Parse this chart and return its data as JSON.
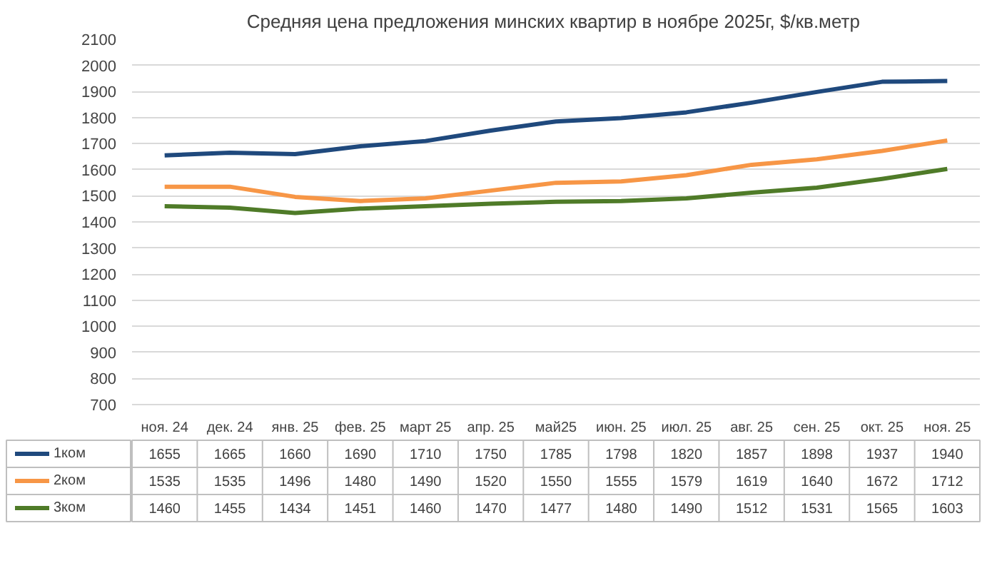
{
  "chart_data": {
    "type": "line",
    "title": "Средняя цена предложения  минских квартир в ноябре 2025г, $/кв.метр",
    "categories": [
      "ноя. 24",
      "дек. 24",
      "янв. 25",
      "фев. 25",
      "март 25",
      "апр. 25",
      "май25",
      "июн. 25",
      "июл. 25",
      "авг. 25",
      "сен. 25",
      "окт. 25",
      "ноя. 25"
    ],
    "series": [
      {
        "name": "1ком",
        "color": "#1f497d",
        "values": [
          1655,
          1665,
          1660,
          1690,
          1710,
          1750,
          1785,
          1798,
          1820,
          1857,
          1898,
          1937,
          1940
        ]
      },
      {
        "name": "2ком",
        "color": "#f79646",
        "values": [
          1535,
          1535,
          1496,
          1480,
          1490,
          1520,
          1550,
          1555,
          1579,
          1619,
          1640,
          1672,
          1712
        ]
      },
      {
        "name": "3ком",
        "color": "#4f7b28",
        "values": [
          1460,
          1455,
          1434,
          1451,
          1460,
          1470,
          1477,
          1480,
          1490,
          1512,
          1531,
          1565,
          1603
        ]
      }
    ],
    "ylim": [
      700,
      2100
    ],
    "yticks": [
      700,
      800,
      900,
      1000,
      1100,
      1200,
      1300,
      1400,
      1500,
      1600,
      1700,
      1800,
      1900,
      2000,
      2100
    ],
    "grid": "y",
    "legend": "bottom left",
    "data_labels": true,
    "marker": "none",
    "line_style": "solid"
  }
}
